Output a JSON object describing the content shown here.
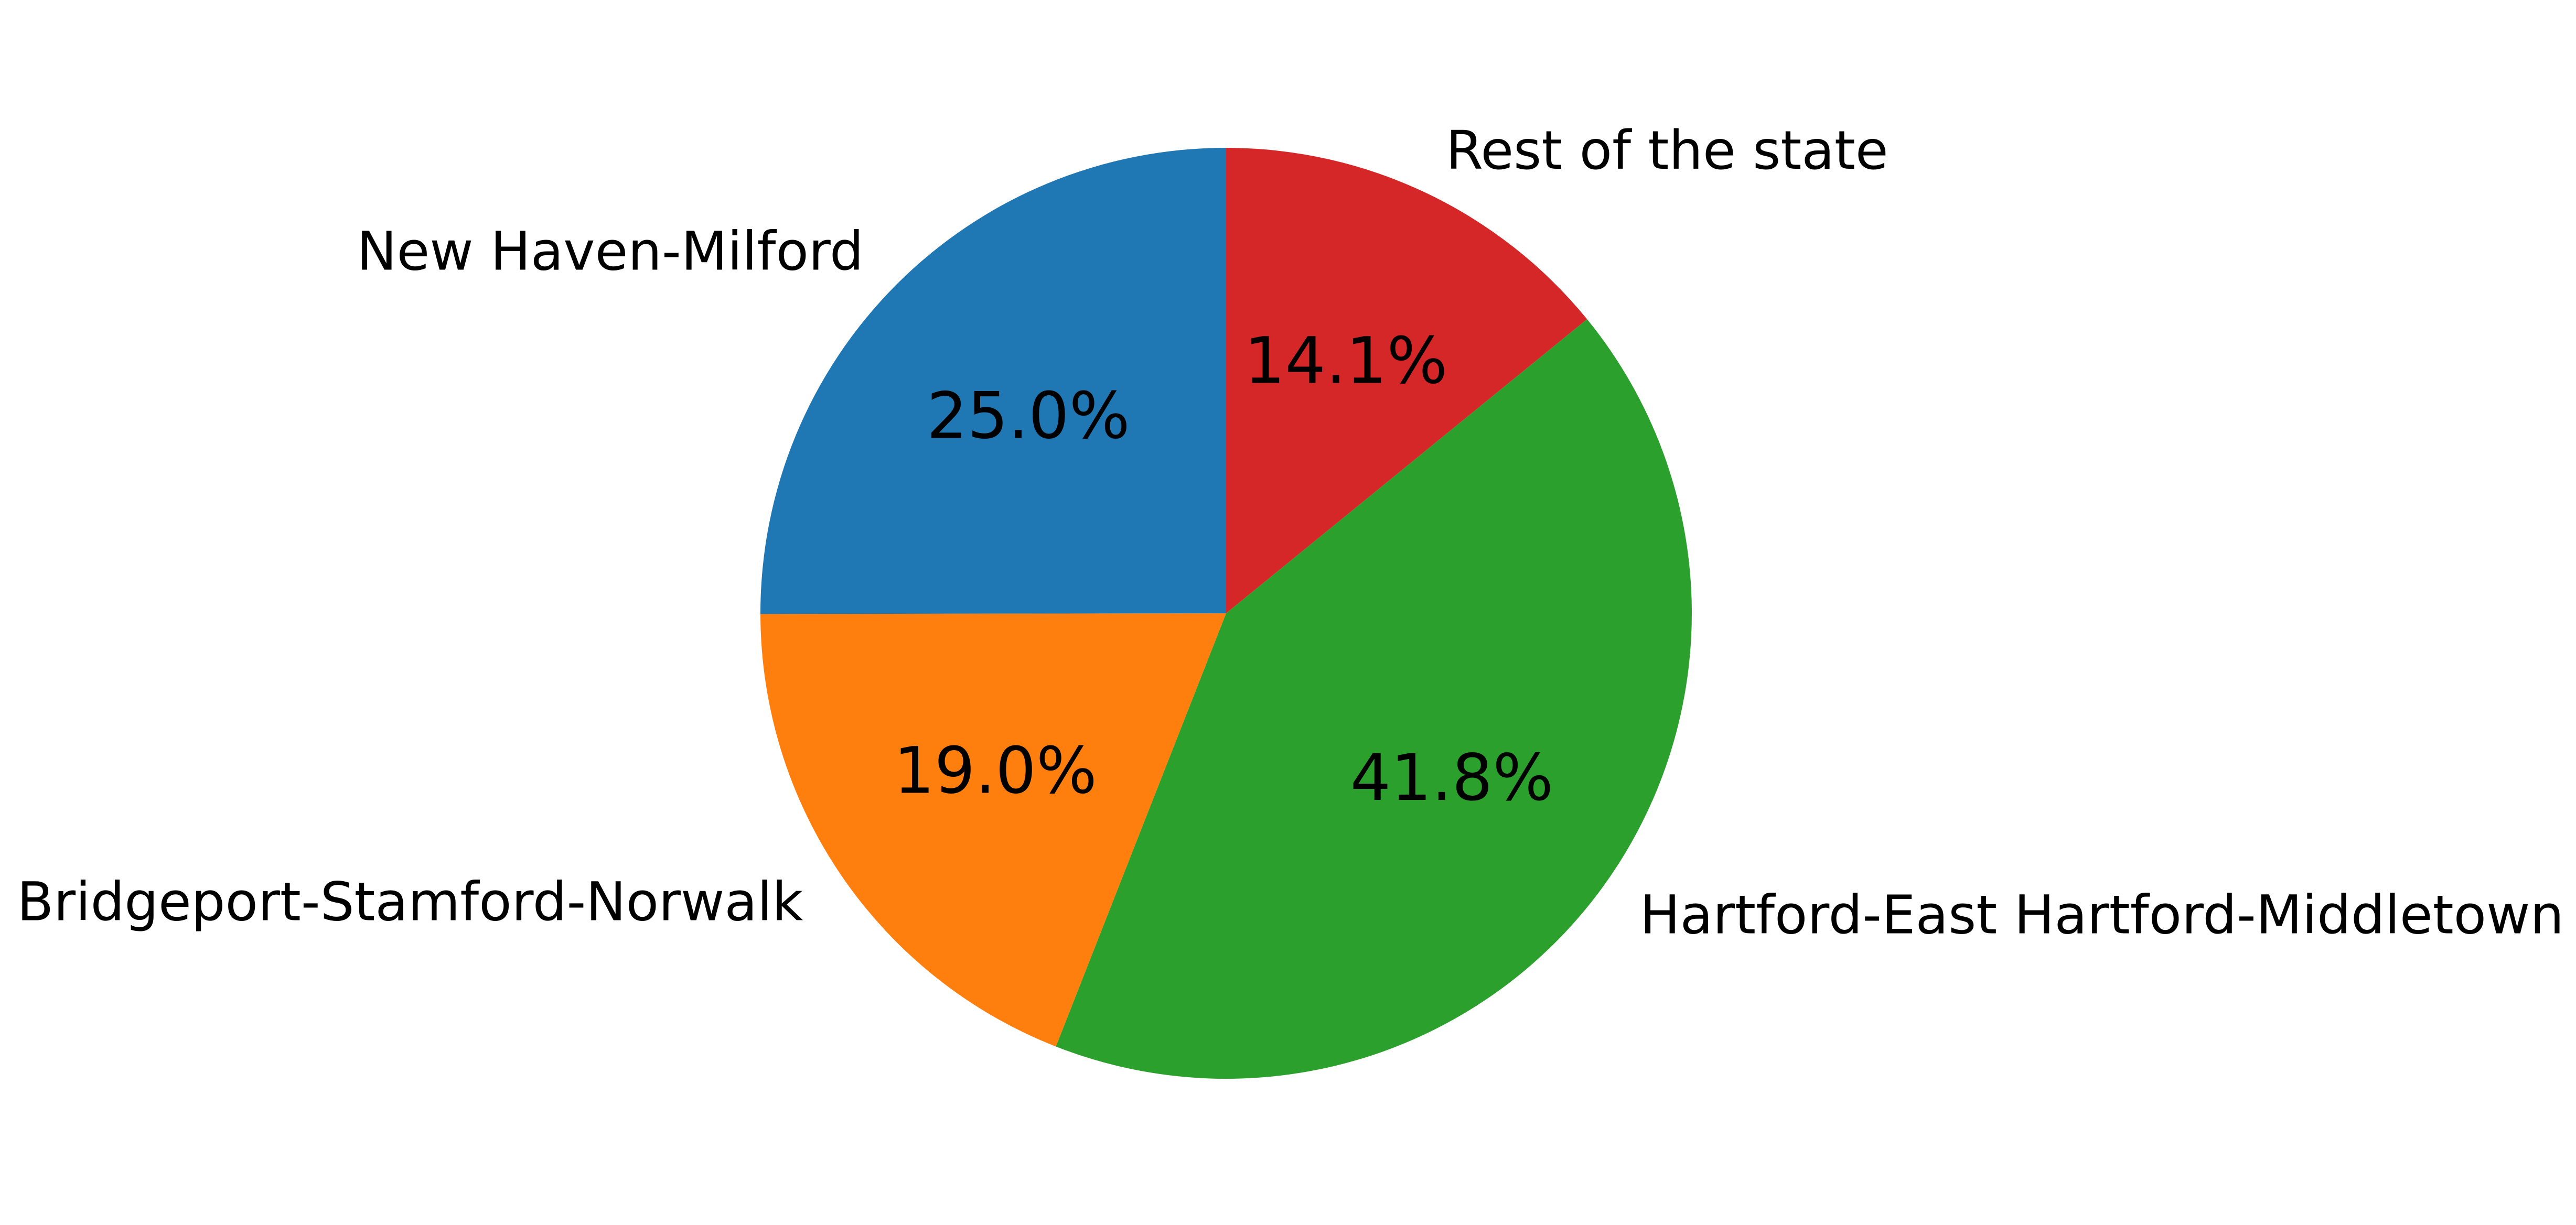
{
  "chart_data": {
    "type": "pie",
    "title": "",
    "start_angle_deg": 90,
    "direction": "clockwise",
    "slices": [
      {
        "label": "Rest of the state",
        "value": 14.1,
        "pct_label": "14.1%",
        "color": "#d62728"
      },
      {
        "label": "Hartford-East Hartford-Middletown",
        "value": 41.8,
        "pct_label": "41.8%",
        "color": "#2ca02c"
      },
      {
        "label": "Bridgeport-Stamford-Norwalk",
        "value": 19.0,
        "pct_label": "19.0%",
        "color": "#ff7f0e"
      },
      {
        "label": "New Haven-Milford",
        "value": 25.0,
        "pct_label": "25.0%",
        "color": "#1f77b4"
      }
    ]
  }
}
